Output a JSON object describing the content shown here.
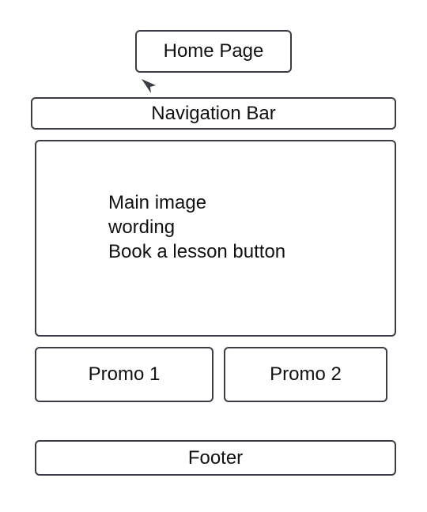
{
  "nodes": {
    "home_page": "Home Page",
    "navigation_bar": "Navigation Bar",
    "hero": {
      "lines": [
        "Main image",
        "wording",
        "Book a lesson button"
      ]
    },
    "promo_1": "Promo 1",
    "promo_2": "Promo 2",
    "footer": "Footer"
  },
  "icons": {
    "pointer": "cursor-arrow-icon"
  }
}
